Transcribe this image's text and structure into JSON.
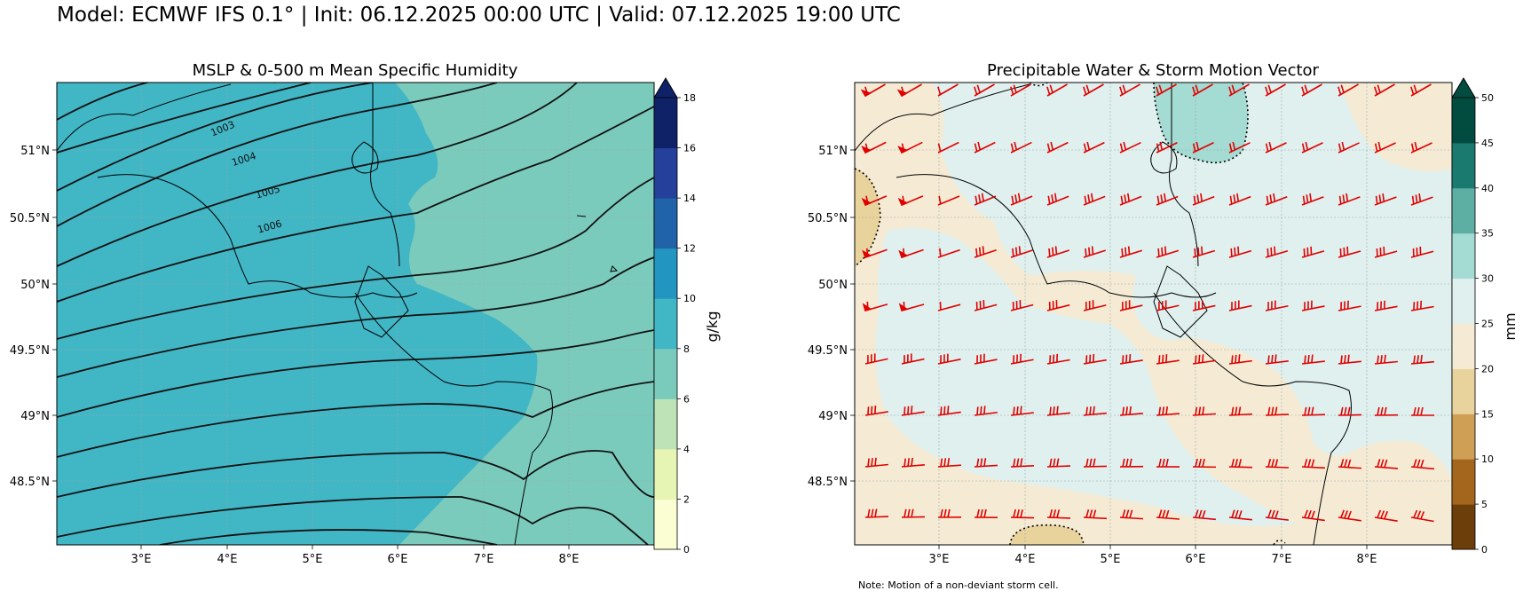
{
  "suptitle": "Model: ECMWF IFS 0.1° | Init: 06.12.2025 00:00 UTC | Valid: 07.12.2025 19:00 UTC",
  "left_panel": {
    "title": "MSLP & 0-500 m Mean Specific Humidity",
    "colorbar": {
      "label": "g/kg",
      "ticks": [
        "0",
        "2",
        "4",
        "6",
        "8",
        "10",
        "12",
        "14",
        "16",
        "18"
      ],
      "colors": [
        "#fbfdd3",
        "#e6f4b4",
        "#bde3b6",
        "#7bcbbd",
        "#41b6c5",
        "#2295c0",
        "#2063a8",
        "#24409a",
        "#0f2268"
      ]
    },
    "isobar_labels": [
      "1003",
      "1004",
      "1005",
      "1006"
    ]
  },
  "right_panel": {
    "title": "Precipitable Water & Storm Motion Vector",
    "colorbar": {
      "label": "mm",
      "ticks": [
        "0",
        "5",
        "10",
        "15",
        "20",
        "25",
        "30",
        "35",
        "40",
        "45",
        "50"
      ],
      "colors": [
        "#6b3e0a",
        "#a3661c",
        "#cf9f55",
        "#e9d39d",
        "#f5ebd5",
        "#dff0ee",
        "#a4dbd2",
        "#5cafa2",
        "#1b7a70",
        "#024b3f"
      ]
    },
    "note": "Note: Motion of a non-deviant storm cell."
  },
  "axes": {
    "lon_ticks": [
      "3°E",
      "4°E",
      "5°E",
      "6°E",
      "7°E",
      "8°E"
    ],
    "lat_ticks": [
      "51°N",
      "50.5°N",
      "50°N",
      "49.5°N",
      "49°N",
      "48.5°N"
    ]
  },
  "colors": {
    "barb": "#e00000",
    "border": "#000000",
    "grid": "#b0b0b0"
  }
}
